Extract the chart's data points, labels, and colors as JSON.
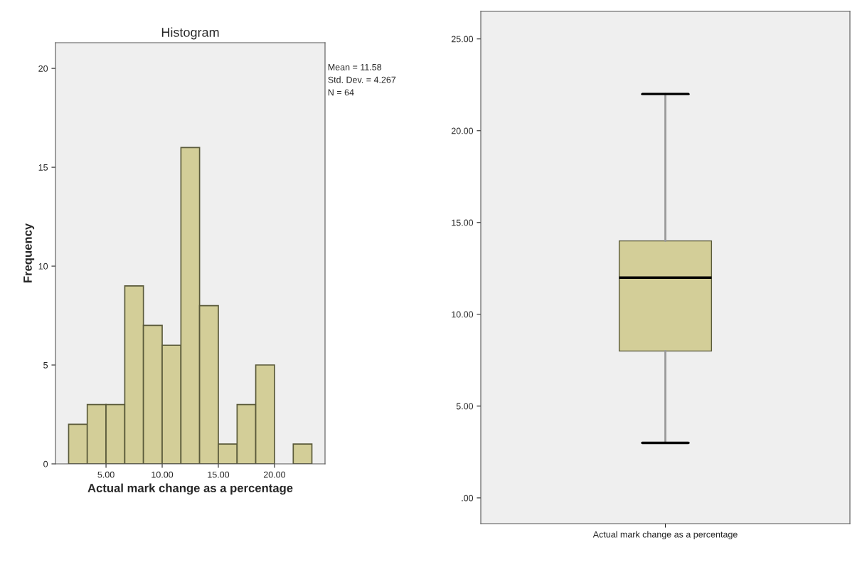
{
  "chart_data": [
    {
      "type": "histogram",
      "title": "Histogram",
      "xlabel": "Actual mark change as a percentage",
      "ylabel": "Frequency",
      "bins": [
        1.67,
        3.33,
        5,
        6.67,
        8.33,
        10,
        11.67,
        13.33,
        15,
        16.67,
        18.33,
        20,
        21.67,
        23.33
      ],
      "values": [
        2,
        3,
        3,
        9,
        7,
        6,
        16,
        8,
        1,
        3,
        5,
        0,
        1
      ],
      "color": "#d3ce98",
      "xlim": [
        0.5,
        24.5
      ],
      "xticks": [
        {
          "value": 5,
          "label": "5.00"
        },
        {
          "value": 10,
          "label": "10.00"
        },
        {
          "value": 15,
          "label": "15.00"
        },
        {
          "value": 20,
          "label": "20.00"
        }
      ],
      "ylim": [
        0,
        21.3
      ],
      "yticks": [
        0,
        5,
        10,
        15,
        20
      ],
      "annotations": [
        "Mean = 11.58",
        "Std. Dev. = 4.267",
        "N = 64"
      ],
      "grid": false,
      "legend": false
    },
    {
      "type": "box",
      "categories": [
        "Actual mark change as a percentage"
      ],
      "boxes": [
        {
          "low": 3,
          "q1": 8,
          "median": 12,
          "q3": 14,
          "high": 22
        }
      ],
      "color": "#d3ce98",
      "ylim": [
        -1.4,
        26.5
      ],
      "yticks": [
        {
          "value": 0,
          "label": ".00"
        },
        {
          "value": 5,
          "label": "5.00"
        },
        {
          "value": 10,
          "label": "10.00"
        },
        {
          "value": 15,
          "label": "15.00"
        },
        {
          "value": 20,
          "label": "20.00"
        },
        {
          "value": 25,
          "label": "25.00"
        }
      ],
      "grid": false,
      "legend": false
    }
  ]
}
